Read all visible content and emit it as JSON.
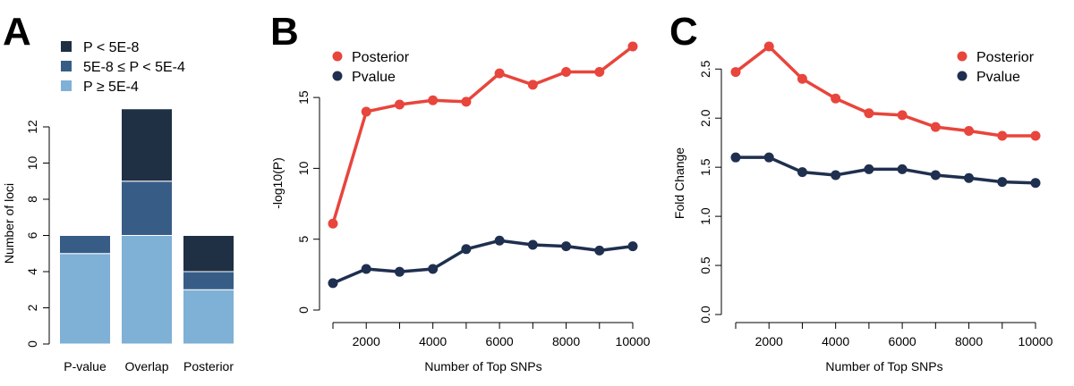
{
  "panel_labels": [
    "A",
    "B",
    "C"
  ],
  "colors": {
    "bar_high": "#1f2f44",
    "bar_mid": "#375d87",
    "bar_low": "#7fb0d6",
    "posterior": "#e8453c",
    "pvalue": "#1f2f4f"
  },
  "chart_data": [
    {
      "panel": "A",
      "type": "bar",
      "stacked": true,
      "categories": [
        "P-value",
        "Overlap",
        "Posterior"
      ],
      "series": [
        {
          "name": "P ≥ 5E-4",
          "color": "#7fb0d6",
          "values": [
            5,
            6,
            3
          ]
        },
        {
          "name": "5E-8 ≤ P < 5E-4",
          "color": "#375d87",
          "values": [
            1,
            3,
            1
          ]
        },
        {
          "name": "P < 5E-8",
          "color": "#1f2f44",
          "values": [
            0,
            4,
            2
          ]
        }
      ],
      "legend_order": [
        "P < 5E-8",
        "5E-8 ≤ P < 5E-4",
        "P ≥ 5E-4"
      ],
      "legend_position": "top-left",
      "xlabel": "",
      "ylabel": "Number of loci",
      "ylim": [
        0,
        13
      ],
      "yticks": [
        0,
        2,
        4,
        6,
        8,
        10,
        12
      ],
      "grid": false
    },
    {
      "panel": "B",
      "type": "line",
      "x": [
        1000,
        2000,
        3000,
        4000,
        5000,
        6000,
        7000,
        8000,
        9000,
        10000
      ],
      "series": [
        {
          "name": "Posterior",
          "color": "#e8453c",
          "values": [
            6.1,
            14.0,
            14.5,
            14.8,
            14.7,
            16.7,
            15.9,
            16.8,
            16.8,
            18.6
          ]
        },
        {
          "name": "Pvalue",
          "color": "#1f2f4f",
          "values": [
            1.9,
            2.9,
            2.7,
            2.9,
            4.3,
            4.9,
            4.6,
            4.5,
            4.2,
            4.5
          ]
        }
      ],
      "legend_position": "top-left",
      "xlabel": "Number of Top SNPs",
      "ylabel": "-log10(P)",
      "xlim": [
        1000,
        10000
      ],
      "xticks": [
        2000,
        4000,
        6000,
        8000,
        10000
      ],
      "ylim": [
        0,
        18.6
      ],
      "yticks": [
        0,
        5,
        10,
        15
      ],
      "grid": false
    },
    {
      "panel": "C",
      "type": "line",
      "x": [
        1000,
        2000,
        3000,
        4000,
        5000,
        6000,
        7000,
        8000,
        9000,
        10000
      ],
      "series": [
        {
          "name": "Posterior",
          "color": "#e8453c",
          "values": [
            2.47,
            2.73,
            2.4,
            2.2,
            2.05,
            2.03,
            1.91,
            1.87,
            1.82,
            1.82
          ]
        },
        {
          "name": "Pvalue",
          "color": "#1f2f4f",
          "values": [
            1.6,
            1.6,
            1.45,
            1.42,
            1.48,
            1.48,
            1.42,
            1.39,
            1.35,
            1.34
          ]
        }
      ],
      "legend_position": "top-right",
      "xlabel": "Number of Top SNPs",
      "ylabel": "Fold Change",
      "xlim": [
        1000,
        10000
      ],
      "xticks": [
        2000,
        4000,
        6000,
        8000,
        10000
      ],
      "ylim": [
        0,
        2.73
      ],
      "yticks": [
        "0.0",
        "0.5",
        "1.0",
        "1.5",
        "2.0",
        "2.5"
      ],
      "grid": false
    }
  ]
}
